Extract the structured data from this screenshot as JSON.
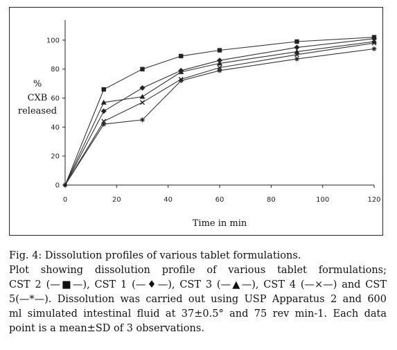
{
  "chart_data": {
    "type": "line",
    "xlabel": "Time in min",
    "ylabel_lines": [
      "%",
      "CXB",
      "released"
    ],
    "xlim": [
      0,
      120
    ],
    "ylim": [
      0,
      110
    ],
    "xticks": [
      "0",
      "20",
      "40",
      "60",
      "80",
      "100",
      "120"
    ],
    "yticks": [
      "0",
      "20",
      "40",
      "60",
      "80",
      "100"
    ],
    "grid": false,
    "x": [
      0,
      15,
      30,
      45,
      60,
      90,
      120
    ],
    "series": [
      {
        "name": "CST 2",
        "marker": "square",
        "values": [
          0,
          66,
          80,
          89,
          93,
          99,
          102
        ]
      },
      {
        "name": "CST 1",
        "marker": "diamond",
        "values": [
          0,
          51,
          67,
          79,
          86,
          95,
          101
        ]
      },
      {
        "name": "CST 3",
        "marker": "triangle",
        "values": [
          0,
          57,
          61,
          78,
          84,
          92,
          99
        ]
      },
      {
        "name": "CST 4",
        "marker": "x",
        "values": [
          0,
          44,
          57,
          73,
          81,
          90,
          98
        ]
      },
      {
        "name": "CST 5",
        "marker": "star",
        "values": [
          0,
          42,
          45,
          72,
          79,
          87,
          94
        ]
      }
    ]
  },
  "caption": {
    "title": "Fig. 4:  Dissolution profiles of various tablet formulations.",
    "line1": "Plot showing dissolution profile of various tablet formulations;",
    "line2": "CST 2 (—■—), CST 1 (—♦—), CST 3 (—▲—), CST 4 (—×—) and CST",
    "line3": "5(—*—). Dissolution was carried out using USP Apparatus 2 and 600",
    "line4": "ml simulated intestinal fluid at 37±0.5° and 75 rev min-1. Each data",
    "line5": "point is a mean±SD of 3 observations."
  }
}
